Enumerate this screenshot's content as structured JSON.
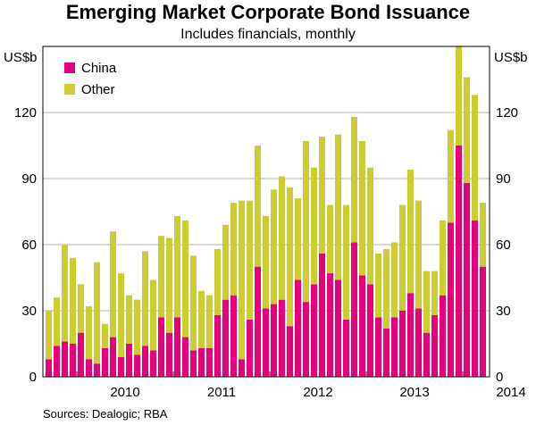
{
  "title": "Emerging Market Corporate Bond Issuance",
  "subtitle": "Includes financials, monthly",
  "footnote": "Sources:  Dealogic; RBA",
  "colors": {
    "China": "#e6007e",
    "Other": "#cccc33",
    "axis": "#000000",
    "grid": "#b3b3b3"
  },
  "chart_data": {
    "type": "bar",
    "stacked": true,
    "ylabel_left": "US$b",
    "ylabel_right": "US$b",
    "ylim": [
      0,
      150
    ],
    "yticks": [
      0,
      30,
      60,
      90,
      120
    ],
    "grid": true,
    "legend": "top-left",
    "x_start": "2009-09",
    "year_labels": [
      "2010",
      "2011",
      "2012",
      "2013",
      "2014"
    ],
    "series": [
      {
        "name": "China",
        "values": [
          8,
          14,
          16,
          15,
          20,
          8,
          6,
          13,
          18,
          9,
          15,
          10,
          14,
          12,
          27,
          20,
          27,
          18,
          12,
          13,
          13,
          28,
          35,
          37,
          8,
          26,
          50,
          31,
          33,
          35,
          23,
          44,
          34,
          42,
          56,
          47,
          44,
          26,
          61,
          46,
          42,
          27,
          22,
          27,
          30,
          38,
          31,
          20,
          28,
          37,
          70,
          105,
          88,
          71,
          50
        ]
      },
      {
        "name": "Other",
        "values": [
          22,
          22,
          44,
          39,
          22,
          24,
          46,
          11,
          48,
          38,
          22,
          25,
          43,
          32,
          37,
          43,
          46,
          53,
          43,
          26,
          24,
          30,
          34,
          42,
          72,
          54,
          55,
          42,
          52,
          56,
          63,
          37,
          73,
          53,
          53,
          31,
          66,
          52,
          57,
          61,
          53,
          29,
          36,
          34,
          48,
          56,
          49,
          28,
          20,
          34,
          42,
          45,
          48,
          57,
          29
        ]
      }
    ]
  }
}
